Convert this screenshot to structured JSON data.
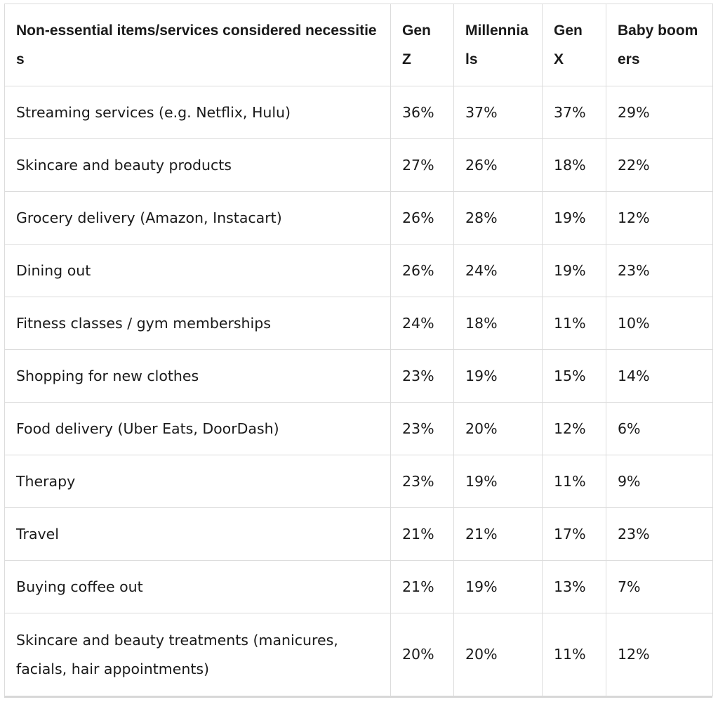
{
  "table": {
    "headers": [
      "Non-essential items/services considered necessities",
      "Gen Z",
      "Millennials",
      "Gen X",
      "Baby boomers"
    ],
    "rows": [
      {
        "item": "Streaming services (e.g. Netflix, Hulu)",
        "gen_z": "36%",
        "millennials": "37%",
        "gen_x": "37%",
        "boomers": "29%"
      },
      {
        "item": "Skincare and beauty products",
        "gen_z": "27%",
        "millennials": "26%",
        "gen_x": "18%",
        "boomers": "22%"
      },
      {
        "item": "Grocery delivery (Amazon, Instacart)",
        "gen_z": "26%",
        "millennials": "28%",
        "gen_x": "19%",
        "boomers": "12%"
      },
      {
        "item": "Dining out",
        "gen_z": "26%",
        "millennials": "24%",
        "gen_x": "19%",
        "boomers": "23%"
      },
      {
        "item": "Fitness classes / gym memberships",
        "gen_z": "24%",
        "millennials": "18%",
        "gen_x": "11%",
        "boomers": "10%"
      },
      {
        "item": "Shopping for new clothes",
        "gen_z": "23%",
        "millennials": "19%",
        "gen_x": "15%",
        "boomers": "14%"
      },
      {
        "item": "Food delivery (Uber Eats, DoorDash)",
        "gen_z": "23%",
        "millennials": "20%",
        "gen_x": "12%",
        "boomers": "6%"
      },
      {
        "item": "Therapy",
        "gen_z": "23%",
        "millennials": "19%",
        "gen_x": "11%",
        "boomers": "9%"
      },
      {
        "item": "Travel",
        "gen_z": "21%",
        "millennials": "21%",
        "gen_x": "17%",
        "boomers": "23%"
      },
      {
        "item": "Buying coffee out",
        "gen_z": "21%",
        "millennials": "19%",
        "gen_x": "13%",
        "boomers": "7%"
      },
      {
        "item": "Skincare and beauty treatments (manicures, facials, hair appointments)",
        "gen_z": "20%",
        "millennials": "20%",
        "gen_x": "11%",
        "boomers": "12%"
      }
    ]
  }
}
